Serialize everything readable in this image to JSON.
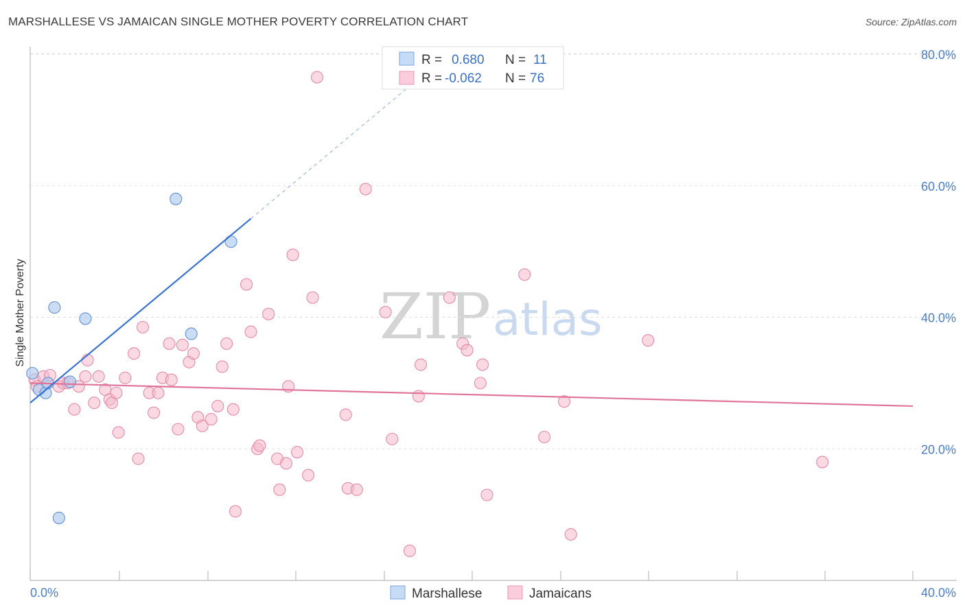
{
  "header": {
    "title": "MARSHALLESE VS JAMAICAN SINGLE MOTHER POVERTY CORRELATION CHART",
    "source": "Source: ZipAtlas.com"
  },
  "watermark": {
    "zip": "ZIP",
    "atlas": "atlas"
  },
  "legend_box": {
    "rows": [
      {
        "r_label": "R =",
        "r_value": "0.680",
        "n_label": "N =",
        "n_value": "11",
        "color": "#aecbee"
      },
      {
        "r_label": "R =",
        "r_value": "-0.062",
        "n_label": "N =",
        "n_value": "76",
        "color": "#f5b9cb"
      }
    ]
  },
  "bottom_legend": [
    {
      "label": "Marshallese",
      "color": "#aecbee"
    },
    {
      "label": "Jamaicans",
      "color": "#f5b9cb"
    }
  ],
  "chart_data": {
    "type": "scatter",
    "title": "MARSHALLESE VS JAMAICAN SINGLE MOTHER POVERTY CORRELATION CHART",
    "xlabel": "",
    "ylabel": "Single Mother Poverty",
    "xlim": [
      0,
      40
    ],
    "ylim": [
      0,
      82
    ],
    "x_tick_labels": [
      "0.0%",
      "40.0%"
    ],
    "y_ticks": [
      20,
      40,
      60,
      80
    ],
    "y_tick_labels": [
      "20.0%",
      "40.0%",
      "60.0%",
      "80.0%"
    ],
    "grid": true,
    "series": [
      {
        "name": "Marshallese",
        "color": "#aecbee",
        "stroke": "#5e8fd6",
        "points": [
          [
            0.1,
            31.5
          ],
          [
            0.4,
            29.0
          ],
          [
            0.7,
            28.5
          ],
          [
            0.8,
            30.0
          ],
          [
            1.1,
            41.5
          ],
          [
            1.3,
            9.5
          ],
          [
            1.8,
            30.2
          ],
          [
            2.5,
            39.8
          ],
          [
            6.6,
            58.0
          ],
          [
            7.3,
            37.5
          ],
          [
            9.1,
            51.5
          ]
        ],
        "trend": {
          "x0": 0.0,
          "y0": 27.0,
          "x1": 10.0,
          "y1": 55.0,
          "dash_to_x": 17.5,
          "color": "#3872d2"
        }
      },
      {
        "name": "Jamaicans",
        "color": "#f5b9cb",
        "stroke": "#e58aa6",
        "points": [
          [
            0.2,
            30.5
          ],
          [
            0.3,
            29.5
          ],
          [
            0.6,
            31.0
          ],
          [
            0.8,
            30.0
          ],
          [
            0.9,
            31.2
          ],
          [
            1.3,
            29.5
          ],
          [
            1.5,
            30.0
          ],
          [
            1.7,
            30.0
          ],
          [
            2.0,
            26.0
          ],
          [
            2.2,
            29.5
          ],
          [
            2.5,
            31.0
          ],
          [
            2.6,
            33.5
          ],
          [
            2.9,
            27.0
          ],
          [
            3.1,
            31.0
          ],
          [
            3.4,
            29.0
          ],
          [
            3.6,
            27.5
          ],
          [
            3.7,
            27.0
          ],
          [
            3.9,
            28.5
          ],
          [
            4.0,
            22.5
          ],
          [
            4.3,
            30.8
          ],
          [
            4.7,
            34.5
          ],
          [
            4.9,
            18.5
          ],
          [
            5.1,
            38.5
          ],
          [
            5.4,
            28.5
          ],
          [
            5.6,
            25.5
          ],
          [
            5.8,
            28.5
          ],
          [
            6.0,
            30.8
          ],
          [
            6.3,
            36.0
          ],
          [
            6.4,
            30.5
          ],
          [
            6.7,
            23.0
          ],
          [
            6.9,
            35.8
          ],
          [
            7.2,
            33.2
          ],
          [
            7.4,
            34.5
          ],
          [
            7.6,
            24.8
          ],
          [
            7.8,
            23.5
          ],
          [
            8.2,
            24.5
          ],
          [
            8.5,
            26.5
          ],
          [
            8.7,
            32.5
          ],
          [
            8.9,
            36.0
          ],
          [
            9.2,
            26.0
          ],
          [
            9.3,
            10.5
          ],
          [
            9.8,
            45.0
          ],
          [
            10.0,
            37.8
          ],
          [
            10.3,
            20.0
          ],
          [
            10.4,
            20.5
          ],
          [
            10.8,
            40.5
          ],
          [
            11.2,
            18.5
          ],
          [
            11.3,
            13.8
          ],
          [
            11.6,
            17.8
          ],
          [
            11.7,
            29.5
          ],
          [
            11.9,
            49.5
          ],
          [
            12.1,
            19.5
          ],
          [
            12.6,
            16.0
          ],
          [
            12.8,
            43.0
          ],
          [
            13.0,
            76.5
          ],
          [
            14.3,
            25.2
          ],
          [
            14.4,
            14.0
          ],
          [
            14.8,
            13.8
          ],
          [
            15.2,
            59.5
          ],
          [
            16.1,
            40.8
          ],
          [
            16.4,
            21.5
          ],
          [
            17.2,
            4.5
          ],
          [
            17.6,
            28.0
          ],
          [
            17.7,
            32.8
          ],
          [
            19.0,
            43.0
          ],
          [
            19.6,
            36.0
          ],
          [
            19.8,
            35.0
          ],
          [
            20.4,
            30.0
          ],
          [
            20.5,
            32.8
          ],
          [
            20.7,
            13.0
          ],
          [
            22.4,
            46.5
          ],
          [
            23.3,
            21.8
          ],
          [
            24.2,
            27.2
          ],
          [
            24.5,
            7.0
          ],
          [
            28.0,
            36.5
          ],
          [
            35.9,
            18.0
          ]
        ],
        "trend": {
          "x0": 0.0,
          "y0": 30.0,
          "x1": 40.0,
          "y1": 26.5,
          "color": "#e0739a"
        }
      }
    ]
  }
}
